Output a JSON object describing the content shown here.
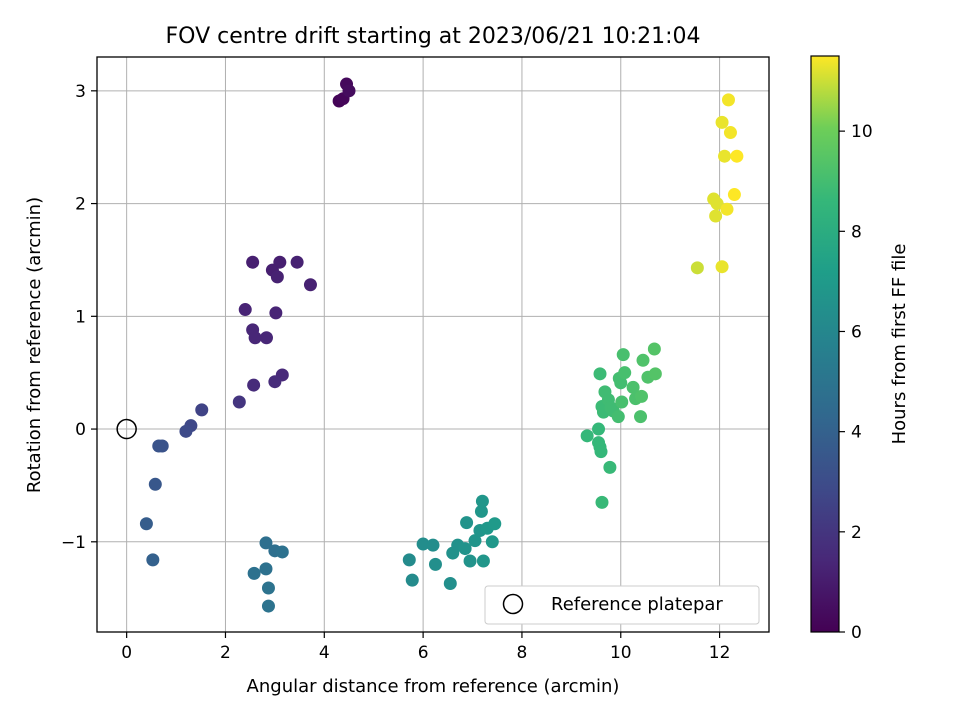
{
  "chart_data": {
    "type": "scatter",
    "title": "FOV centre drift starting at 2023/06/21 10:21:04",
    "xlabel": "Angular distance from reference (arcmin)",
    "ylabel": "Rotation from reference (arcmin)",
    "xlim": [
      -0.6,
      13.0
    ],
    "ylim": [
      -1.8,
      3.3
    ],
    "xticks": [
      0,
      2,
      4,
      6,
      8,
      10,
      12
    ],
    "yticks": [
      -1,
      0,
      1,
      2,
      3
    ],
    "xtick_labels": [
      "0",
      "2",
      "4",
      "6",
      "8",
      "10",
      "12"
    ],
    "ytick_labels": [
      "−1",
      "0",
      "1",
      "2",
      "3"
    ],
    "grid": true,
    "legend": {
      "placement": "lower right",
      "entries": [
        "Reference platepar"
      ]
    },
    "reference_point": {
      "x": 0,
      "y": 0,
      "label": "Reference platepar"
    },
    "colorbar": {
      "label": "Hours from first FF file",
      "colormap": "viridis",
      "range": [
        0,
        11.5
      ],
      "ticks": [
        0,
        2,
        4,
        6,
        8,
        10
      ],
      "tick_labels": [
        "0",
        "2",
        "4",
        "6",
        "8",
        "10"
      ]
    },
    "points": [
      {
        "x": 4.3,
        "y": 2.91,
        "t": 0.1
      },
      {
        "x": 4.38,
        "y": 2.93,
        "t": 0.2
      },
      {
        "x": 4.45,
        "y": 3.06,
        "t": 0.3
      },
      {
        "x": 4.5,
        "y": 3.0,
        "t": 0.4
      },
      {
        "x": 2.55,
        "y": 1.48,
        "t": 1.1
      },
      {
        "x": 2.95,
        "y": 1.41,
        "t": 1.1
      },
      {
        "x": 3.1,
        "y": 1.48,
        "t": 1.1
      },
      {
        "x": 3.45,
        "y": 1.48,
        "t": 1.2
      },
      {
        "x": 3.05,
        "y": 1.35,
        "t": 1.2
      },
      {
        "x": 3.72,
        "y": 1.28,
        "t": 1.2
      },
      {
        "x": 2.4,
        "y": 1.06,
        "t": 1.3
      },
      {
        "x": 3.02,
        "y": 1.03,
        "t": 1.3
      },
      {
        "x": 2.55,
        "y": 0.88,
        "t": 1.4
      },
      {
        "x": 2.6,
        "y": 0.81,
        "t": 1.4
      },
      {
        "x": 2.83,
        "y": 0.81,
        "t": 1.4
      },
      {
        "x": 3.15,
        "y": 0.48,
        "t": 1.5
      },
      {
        "x": 2.57,
        "y": 0.39,
        "t": 1.6
      },
      {
        "x": 3.0,
        "y": 0.42,
        "t": 1.6
      },
      {
        "x": 2.28,
        "y": 0.24,
        "t": 2.0
      },
      {
        "x": 1.52,
        "y": 0.17,
        "t": 2.6
      },
      {
        "x": 1.3,
        "y": 0.03,
        "t": 2.8
      },
      {
        "x": 1.2,
        "y": -0.02,
        "t": 2.9
      },
      {
        "x": 0.72,
        "y": -0.15,
        "t": 3.3
      },
      {
        "x": 0.65,
        "y": -0.15,
        "t": 3.3
      },
      {
        "x": 0.58,
        "y": -0.49,
        "t": 3.5
      },
      {
        "x": 0.4,
        "y": -0.84,
        "t": 3.8
      },
      {
        "x": 0.53,
        "y": -1.16,
        "t": 4.0
      },
      {
        "x": 2.82,
        "y": -1.01,
        "t": 4.7
      },
      {
        "x": 3.0,
        "y": -1.08,
        "t": 4.7
      },
      {
        "x": 3.15,
        "y": -1.09,
        "t": 4.8
      },
      {
        "x": 2.58,
        "y": -1.28,
        "t": 4.8
      },
      {
        "x": 2.82,
        "y": -1.24,
        "t": 4.8
      },
      {
        "x": 2.87,
        "y": -1.41,
        "t": 4.9
      },
      {
        "x": 2.87,
        "y": -1.57,
        "t": 4.9
      },
      {
        "x": 5.72,
        "y": -1.16,
        "t": 6.2
      },
      {
        "x": 5.78,
        "y": -1.34,
        "t": 6.2
      },
      {
        "x": 6.0,
        "y": -1.02,
        "t": 6.3
      },
      {
        "x": 6.2,
        "y": -1.03,
        "t": 6.3
      },
      {
        "x": 6.25,
        "y": -1.2,
        "t": 6.4
      },
      {
        "x": 6.55,
        "y": -1.37,
        "t": 6.4
      },
      {
        "x": 6.6,
        "y": -1.1,
        "t": 6.5
      },
      {
        "x": 6.7,
        "y": -1.03,
        "t": 6.5
      },
      {
        "x": 6.85,
        "y": -1.06,
        "t": 6.6
      },
      {
        "x": 6.88,
        "y": -0.83,
        "t": 6.6
      },
      {
        "x": 6.95,
        "y": -1.17,
        "t": 6.6
      },
      {
        "x": 7.05,
        "y": -0.99,
        "t": 6.7
      },
      {
        "x": 7.15,
        "y": -0.9,
        "t": 6.7
      },
      {
        "x": 7.18,
        "y": -0.73,
        "t": 6.8
      },
      {
        "x": 7.2,
        "y": -0.64,
        "t": 6.8
      },
      {
        "x": 7.22,
        "y": -1.17,
        "t": 6.8
      },
      {
        "x": 7.3,
        "y": -0.88,
        "t": 6.9
      },
      {
        "x": 7.4,
        "y": -1.0,
        "t": 6.9
      },
      {
        "x": 7.45,
        "y": -0.84,
        "t": 7.0
      },
      {
        "x": 9.32,
        "y": -0.06,
        "t": 8.6
      },
      {
        "x": 9.55,
        "y": 0.0,
        "t": 8.6
      },
      {
        "x": 9.55,
        "y": -0.12,
        "t": 8.6
      },
      {
        "x": 9.58,
        "y": -0.16,
        "t": 8.6
      },
      {
        "x": 9.6,
        "y": -0.2,
        "t": 8.6
      },
      {
        "x": 9.62,
        "y": -0.65,
        "t": 8.7
      },
      {
        "x": 9.78,
        "y": -0.34,
        "t": 8.7
      },
      {
        "x": 9.58,
        "y": 0.49,
        "t": 8.8
      },
      {
        "x": 9.62,
        "y": 0.2,
        "t": 8.8
      },
      {
        "x": 9.65,
        "y": 0.15,
        "t": 8.8
      },
      {
        "x": 9.68,
        "y": 0.33,
        "t": 8.9
      },
      {
        "x": 9.75,
        "y": 0.26,
        "t": 8.9
      },
      {
        "x": 9.8,
        "y": 0.19,
        "t": 8.9
      },
      {
        "x": 9.85,
        "y": 0.16,
        "t": 8.9
      },
      {
        "x": 9.95,
        "y": 0.11,
        "t": 9.0
      },
      {
        "x": 9.97,
        "y": 0.45,
        "t": 9.0
      },
      {
        "x": 10.0,
        "y": 0.41,
        "t": 9.0
      },
      {
        "x": 10.02,
        "y": 0.24,
        "t": 9.1
      },
      {
        "x": 10.05,
        "y": 0.66,
        "t": 9.1
      },
      {
        "x": 10.08,
        "y": 0.5,
        "t": 9.1
      },
      {
        "x": 10.25,
        "y": 0.37,
        "t": 9.2
      },
      {
        "x": 10.3,
        "y": 0.27,
        "t": 9.2
      },
      {
        "x": 10.4,
        "y": 0.11,
        "t": 9.2
      },
      {
        "x": 10.42,
        "y": 0.29,
        "t": 9.3
      },
      {
        "x": 10.45,
        "y": 0.61,
        "t": 9.3
      },
      {
        "x": 10.55,
        "y": 0.46,
        "t": 9.3
      },
      {
        "x": 10.68,
        "y": 0.71,
        "t": 9.4
      },
      {
        "x": 10.7,
        "y": 0.49,
        "t": 9.4
      },
      {
        "x": 11.55,
        "y": 1.43,
        "t": 11.0
      },
      {
        "x": 11.88,
        "y": 2.04,
        "t": 11.2
      },
      {
        "x": 11.92,
        "y": 1.89,
        "t": 11.2
      },
      {
        "x": 11.95,
        "y": 2.0,
        "t": 11.2
      },
      {
        "x": 12.05,
        "y": 1.44,
        "t": 11.3
      },
      {
        "x": 12.05,
        "y": 2.72,
        "t": 11.3
      },
      {
        "x": 12.1,
        "y": 2.42,
        "t": 11.3
      },
      {
        "x": 12.15,
        "y": 1.95,
        "t": 11.4
      },
      {
        "x": 12.18,
        "y": 2.92,
        "t": 11.4
      },
      {
        "x": 12.22,
        "y": 2.63,
        "t": 11.4
      },
      {
        "x": 12.3,
        "y": 2.08,
        "t": 11.5
      },
      {
        "x": 12.35,
        "y": 2.42,
        "t": 11.5
      }
    ]
  }
}
